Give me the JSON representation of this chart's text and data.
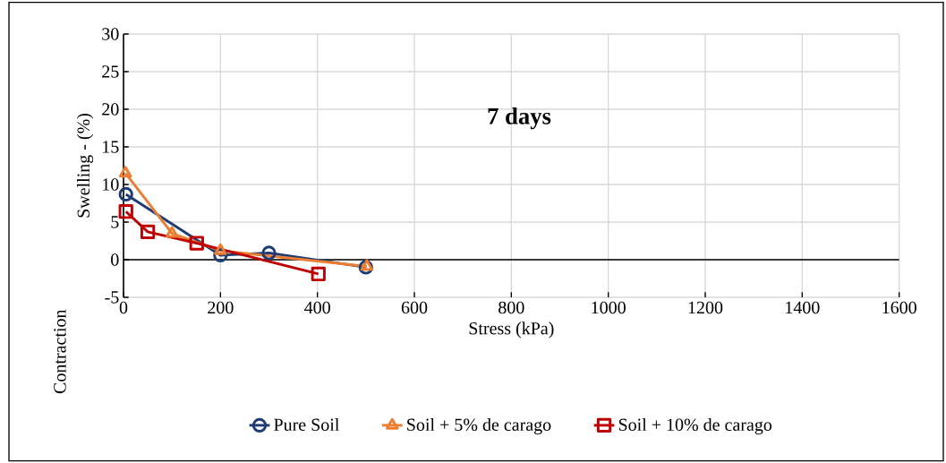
{
  "chart_data": {
    "type": "line",
    "xlabel": "Stress (kPa)",
    "ylabel": "Swelling -  (%)",
    "annotations": [
      "7 days",
      "Contraction"
    ],
    "xlim": [
      0,
      1600
    ],
    "xticks": [
      0,
      200,
      400,
      600,
      800,
      1000,
      1200,
      1400,
      1600
    ],
    "ylim": [
      -5,
      30
    ],
    "yticks": [
      -5,
      0,
      5,
      10,
      15,
      20,
      25,
      30
    ],
    "grid": true,
    "legend": "bottom",
    "series": [
      {
        "name": "Pure Soil",
        "color": "#1f3b73",
        "marker": "circle",
        "x": [
          5,
          200,
          300,
          500
        ],
        "values": [
          8.7,
          0.6,
          0.9,
          -1.0
        ]
      },
      {
        "name": "Soil + 5% de carago",
        "color": "#ed7d31",
        "marker": "triangle",
        "x": [
          4,
          100,
          200,
          502
        ],
        "values": [
          11.5,
          3.5,
          1.2,
          -0.9
        ]
      },
      {
        "name": "Soil + 10% de carago",
        "color": "#c00000",
        "marker": "square",
        "x": [
          5,
          50,
          151,
          402
        ],
        "values": [
          6.4,
          3.7,
          2.2,
          -1.9
        ]
      }
    ]
  }
}
